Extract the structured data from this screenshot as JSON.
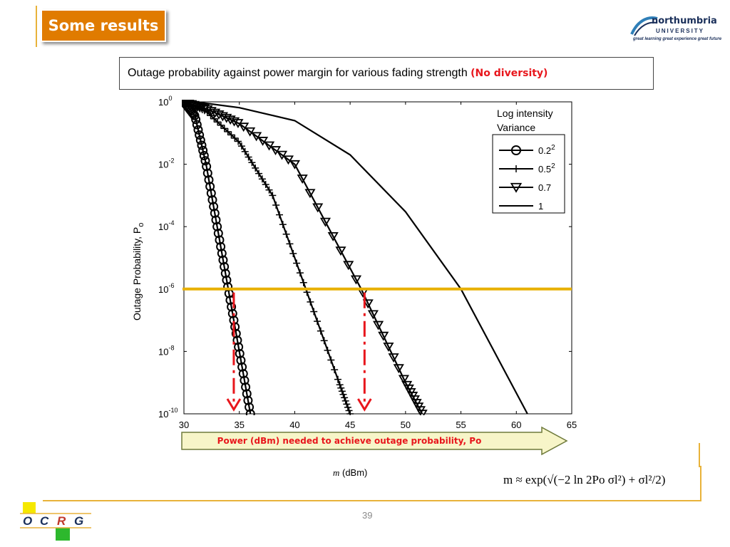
{
  "slide": {
    "title": "Some results",
    "page_number": "39"
  },
  "logo": {
    "name": "northumbria",
    "subtitle": "UNIVERSITY",
    "tagline": "great learning  great experience  great future"
  },
  "ocrg_logo": {
    "letters": [
      "O",
      "C",
      "R",
      "G"
    ]
  },
  "chart_title": {
    "main": "Outage probability against power margin for various fading strength ",
    "highlight": "(No diversity)"
  },
  "arrow_banner": "Power (dBm) needed to achieve outage probability, Po",
  "formula": "m ≈ exp(√(−2 ln 2Po σl²) + σl²/2)",
  "colors": {
    "title_badge": "#e07b00",
    "accent_gold": "#e8b23a",
    "threshold_line": "#e8b000",
    "arrow_red": "#e8161c",
    "banner_fill": "#f7f5c8"
  },
  "chart_data": {
    "type": "line",
    "y_scale": "log",
    "xlim": [
      30,
      65
    ],
    "ylim": [
      1e-10,
      1
    ],
    "x_ticks": [
      "30",
      "35",
      "40",
      "45",
      "50",
      "55",
      "60",
      "65"
    ],
    "y_ticks": [
      {
        "base": "10",
        "exp": "0"
      },
      {
        "base": "10",
        "exp": "-2"
      },
      {
        "base": "10",
        "exp": "-4"
      },
      {
        "base": "10",
        "exp": "-6"
      },
      {
        "base": "10",
        "exp": "-8"
      },
      {
        "base": "10",
        "exp": "-10"
      }
    ],
    "xlabel": {
      "symbol": "m",
      "unit": " (dBm)"
    },
    "ylabel": "Outage Probability,   P",
    "ylabel_sub": "o",
    "legend": {
      "title_lines": [
        "Log intensity",
        "Variance"
      ],
      "position": "top-right"
    },
    "series": [
      {
        "name": "0.2",
        "name_sup": "2",
        "marker": "circle",
        "x": [
          30,
          31,
          32,
          33,
          34,
          35,
          36
        ],
        "y": [
          1,
          0.35,
          0.01,
          0.0001,
          1e-06,
          1e-08,
          1e-10
        ]
      },
      {
        "name": "0.5",
        "name_sup": "2",
        "marker": "plus",
        "x": [
          30,
          32,
          35,
          38,
          41,
          44,
          45
        ],
        "y": [
          1,
          0.5,
          0.05,
          0.001,
          1e-06,
          1e-09,
          1e-10
        ]
      },
      {
        "name": "0.7",
        "marker": "triangle-down",
        "x": [
          30,
          32,
          35,
          40,
          46,
          50,
          51.5
        ],
        "y": [
          1,
          0.6,
          0.2,
          0.01,
          1e-06,
          1e-09,
          1e-10
        ]
      },
      {
        "name": "1",
        "marker": "none",
        "x": [
          31,
          35,
          40,
          45,
          50,
          55,
          58,
          61
        ],
        "y": [
          1,
          0.65,
          0.25,
          0.02,
          0.0003,
          1e-06,
          1e-08,
          1e-10
        ]
      }
    ],
    "threshold": {
      "y": 1e-06
    },
    "arrows": [
      {
        "x": 34.5
      },
      {
        "x": 46.3
      }
    ]
  }
}
